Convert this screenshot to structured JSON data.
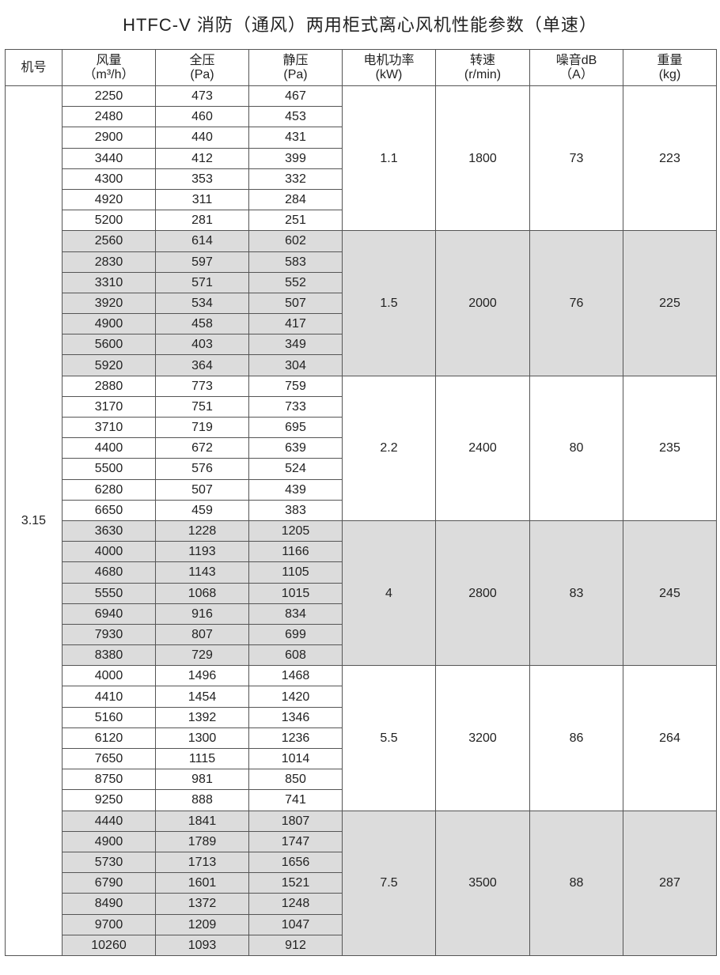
{
  "title": "HTFC-V 消防（通风）两用柜式离心风机性能参数（单速）",
  "headers": [
    {
      "l1": "机号",
      "l2": ""
    },
    {
      "l1": "风量",
      "l2": "（m³/h）"
    },
    {
      "l1": "全压",
      "l2": "(Pa)"
    },
    {
      "l1": "静压",
      "l2": "(Pa)"
    },
    {
      "l1": "电机功率",
      "l2": "(kW)"
    },
    {
      "l1": "转速",
      "l2": "(r/min)"
    },
    {
      "l1": "噪音dB",
      "l2": "（A）"
    },
    {
      "l1": "重量",
      "l2": "(kg)"
    }
  ],
  "model": "3.15",
  "shade_color": "#dcdcdc",
  "groups": [
    {
      "power": "1.1",
      "speed": "1800",
      "noise": "73",
      "weight": "223",
      "rows": [
        [
          "2250",
          "473",
          "467"
        ],
        [
          "2480",
          "460",
          "453"
        ],
        [
          "2900",
          "440",
          "431"
        ],
        [
          "3440",
          "412",
          "399"
        ],
        [
          "4300",
          "353",
          "332"
        ],
        [
          "4920",
          "311",
          "284"
        ],
        [
          "5200",
          "281",
          "251"
        ]
      ]
    },
    {
      "power": "1.5",
      "speed": "2000",
      "noise": "76",
      "weight": "225",
      "rows": [
        [
          "2560",
          "614",
          "602"
        ],
        [
          "2830",
          "597",
          "583"
        ],
        [
          "3310",
          "571",
          "552"
        ],
        [
          "3920",
          "534",
          "507"
        ],
        [
          "4900",
          "458",
          "417"
        ],
        [
          "5600",
          "403",
          "349"
        ],
        [
          "5920",
          "364",
          "304"
        ]
      ]
    },
    {
      "power": "2.2",
      "speed": "2400",
      "noise": "80",
      "weight": "235",
      "rows": [
        [
          "2880",
          "773",
          "759"
        ],
        [
          "3170",
          "751",
          "733"
        ],
        [
          "3710",
          "719",
          "695"
        ],
        [
          "4400",
          "672",
          "639"
        ],
        [
          "5500",
          "576",
          "524"
        ],
        [
          "6280",
          "507",
          "439"
        ],
        [
          "6650",
          "459",
          "383"
        ]
      ]
    },
    {
      "power": "4",
      "speed": "2800",
      "noise": "83",
      "weight": "245",
      "rows": [
        [
          "3630",
          "1228",
          "1205"
        ],
        [
          "4000",
          "1193",
          "1166"
        ],
        [
          "4680",
          "1143",
          "1105"
        ],
        [
          "5550",
          "1068",
          "1015"
        ],
        [
          "6940",
          "916",
          "834"
        ],
        [
          "7930",
          "807",
          "699"
        ],
        [
          "8380",
          "729",
          "608"
        ]
      ]
    },
    {
      "power": "5.5",
      "speed": "3200",
      "noise": "86",
      "weight": "264",
      "rows": [
        [
          "4000",
          "1496",
          "1468"
        ],
        [
          "4410",
          "1454",
          "1420"
        ],
        [
          "5160",
          "1392",
          "1346"
        ],
        [
          "6120",
          "1300",
          "1236"
        ],
        [
          "7650",
          "1115",
          "1014"
        ],
        [
          "8750",
          "981",
          "850"
        ],
        [
          "9250",
          "888",
          "741"
        ]
      ]
    },
    {
      "power": "7.5",
      "speed": "3500",
      "noise": "88",
      "weight": "287",
      "rows": [
        [
          "4440",
          "1841",
          "1807"
        ],
        [
          "4900",
          "1789",
          "1747"
        ],
        [
          "5730",
          "1713",
          "1656"
        ],
        [
          "6790",
          "1601",
          "1521"
        ],
        [
          "8490",
          "1372",
          "1248"
        ],
        [
          "9700",
          "1209",
          "1047"
        ],
        [
          "10260",
          "1093",
          "912"
        ]
      ]
    }
  ]
}
